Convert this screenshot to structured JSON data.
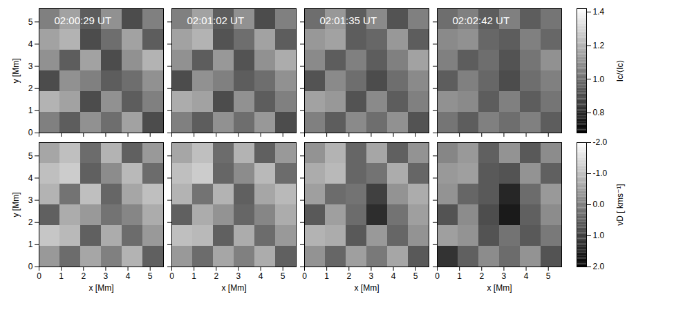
{
  "chart_data": [
    {
      "type": "heatmap",
      "title": "02:00:29 UT",
      "ylabel": "y [Mm]",
      "xlim": [
        0,
        5.6
      ],
      "ylim": [
        0,
        5.6
      ],
      "xticks": [
        0,
        1,
        2,
        3,
        4,
        5
      ],
      "yticks": [
        0,
        1,
        2,
        3,
        4,
        5
      ],
      "tick_labels": "y",
      "cells": [
        [
          1.05,
          1.15,
          0.95,
          1.1,
          0.9,
          1.05
        ],
        [
          1.15,
          1.2,
          0.9,
          1.0,
          1.15,
          0.95
        ],
        [
          1.1,
          0.95,
          1.15,
          0.9,
          1.1,
          1.2
        ],
        [
          0.9,
          1.1,
          1.05,
          0.95,
          1.0,
          1.1
        ],
        [
          1.2,
          1.15,
          0.9,
          1.1,
          0.95,
          1.05
        ],
        [
          1.05,
          0.95,
          1.1,
          1.0,
          1.15,
          0.9
        ]
      ]
    },
    {
      "type": "heatmap",
      "title": "02:01:02 UT",
      "xlim": [
        0,
        5.6
      ],
      "ylim": [
        0,
        5.6
      ],
      "xticks": [
        0,
        1,
        2,
        3,
        4,
        5
      ],
      "yticks": [
        0,
        1,
        2,
        3,
        4,
        5
      ],
      "tick_labels": false,
      "cells": [
        [
          1.05,
          1.15,
          0.95,
          1.1,
          0.9,
          1.05
        ],
        [
          1.15,
          1.2,
          0.92,
          1.0,
          1.15,
          0.95
        ],
        [
          1.1,
          0.95,
          1.12,
          0.92,
          1.1,
          1.18
        ],
        [
          0.9,
          1.1,
          1.05,
          0.95,
          1.0,
          1.1
        ],
        [
          1.18,
          1.15,
          0.9,
          1.1,
          0.95,
          1.05
        ],
        [
          1.05,
          0.95,
          1.1,
          1.0,
          1.12,
          0.9
        ]
      ]
    },
    {
      "type": "heatmap",
      "title": "02:01:35 UT",
      "xlim": [
        0,
        5.6
      ],
      "ylim": [
        0,
        5.6
      ],
      "xticks": [
        0,
        1,
        2,
        3,
        4,
        5
      ],
      "yticks": [
        0,
        1,
        2,
        3,
        4,
        5
      ],
      "tick_labels": false,
      "cells": [
        [
          1.0,
          1.12,
          0.95,
          1.08,
          0.92,
          1.05
        ],
        [
          1.12,
          1.15,
          0.95,
          0.98,
          1.12,
          0.95
        ],
        [
          1.08,
          0.95,
          1.05,
          0.95,
          1.05,
          1.15
        ],
        [
          0.92,
          1.08,
          1.0,
          0.9,
          1.0,
          1.08
        ],
        [
          1.15,
          1.12,
          0.92,
          1.08,
          0.95,
          1.05
        ],
        [
          1.05,
          0.95,
          1.08,
          1.0,
          1.1,
          0.92
        ]
      ]
    },
    {
      "type": "heatmap",
      "title": "02:02:42 UT",
      "xlim": [
        0,
        5.6
      ],
      "ylim": [
        0,
        5.6
      ],
      "xticks": [
        0,
        1,
        2,
        3,
        4,
        5
      ],
      "yticks": [
        0,
        1,
        2,
        3,
        4,
        5
      ],
      "tick_labels": false,
      "cells": [
        [
          1.0,
          1.05,
          0.95,
          1.05,
          0.95,
          1.02
        ],
        [
          1.08,
          1.1,
          0.98,
          0.95,
          1.05,
          0.98
        ],
        [
          1.05,
          0.95,
          1.0,
          0.92,
          1.02,
          1.1
        ],
        [
          0.95,
          1.05,
          0.98,
          0.9,
          1.0,
          1.05
        ],
        [
          1.1,
          1.08,
          0.95,
          1.05,
          0.95,
          1.02
        ],
        [
          1.02,
          0.95,
          1.05,
          1.0,
          1.05,
          0.95
        ]
      ],
      "colorbar": {
        "label": "Ic/⟨Ic⟩",
        "range": [
          0.68,
          1.42
        ],
        "colors": [
          "#000000",
          "#ffffff"
        ],
        "ticks": [
          0.8,
          {
            "value": 1,
            "label": "1.0"
          },
          1.2,
          1.4
        ]
      }
    },
    {
      "type": "heatmap",
      "xlabel": "x [Mm]",
      "ylabel": "y [Mm]",
      "xlim": [
        0,
        5.6
      ],
      "ylim": [
        0,
        5.6
      ],
      "xticks": [
        0,
        1,
        2,
        3,
        4,
        5
      ],
      "yticks": [
        0,
        1,
        2,
        3,
        4,
        5
      ],
      "tick_labels": true,
      "cells": [
        [
          -0.6,
          -1.0,
          0.3,
          -0.8,
          0.5,
          -0.4
        ],
        [
          -1.0,
          -1.2,
          0.5,
          -0.2,
          -0.9,
          0.3
        ],
        [
          -0.8,
          0.2,
          -1.0,
          0.4,
          -0.6,
          -1.0
        ],
        [
          0.5,
          -0.7,
          -0.4,
          0.2,
          -0.1,
          -0.7
        ],
        [
          -1.1,
          -0.9,
          0.5,
          -0.7,
          0.3,
          -0.4
        ],
        [
          -0.4,
          0.3,
          -0.6,
          0.0,
          -0.8,
          0.5
        ]
      ]
    },
    {
      "type": "heatmap",
      "xlabel": "x [Mm]",
      "xlim": [
        0,
        5.6
      ],
      "ylim": [
        0,
        5.6
      ],
      "xticks": [
        0,
        1,
        2,
        3,
        4,
        5
      ],
      "yticks": [
        0,
        1,
        2,
        3,
        4,
        5
      ],
      "tick_labels": "x",
      "cells": [
        [
          -0.6,
          -1.0,
          0.3,
          -0.8,
          0.5,
          -0.4
        ],
        [
          -1.0,
          -1.2,
          0.4,
          -0.2,
          -0.9,
          0.3
        ],
        [
          -0.8,
          0.2,
          -0.8,
          0.5,
          -0.6,
          -0.9
        ],
        [
          0.5,
          -0.7,
          -0.3,
          0.4,
          -0.1,
          -0.7
        ],
        [
          -1.0,
          -0.9,
          0.5,
          -0.7,
          0.3,
          -0.4
        ],
        [
          -0.4,
          0.3,
          -0.6,
          0.0,
          -0.7,
          0.5
        ]
      ]
    },
    {
      "type": "heatmap",
      "xlabel": "x [Mm]",
      "xlim": [
        0,
        5.6
      ],
      "ylim": [
        0,
        5.6
      ],
      "xticks": [
        0,
        1,
        2,
        3,
        4,
        5
      ],
      "yticks": [
        0,
        1,
        2,
        3,
        4,
        5
      ],
      "tick_labels": "x",
      "cells": [
        [
          -0.3,
          -0.8,
          0.4,
          -0.6,
          0.5,
          -0.3
        ],
        [
          -0.7,
          -0.9,
          0.4,
          0.2,
          -0.7,
          0.4
        ],
        [
          -0.5,
          0.3,
          0.2,
          1.0,
          -0.3,
          -0.7
        ],
        [
          0.6,
          -0.5,
          0.3,
          1.3,
          0.2,
          -0.5
        ],
        [
          -0.8,
          -0.7,
          0.6,
          -0.4,
          0.4,
          -0.3
        ],
        [
          -0.3,
          0.4,
          -0.5,
          0.1,
          -0.6,
          0.6
        ]
      ]
    },
    {
      "type": "heatmap",
      "xlabel": "x [Mm]",
      "xlim": [
        0,
        5.6
      ],
      "ylim": [
        0,
        5.6
      ],
      "xticks": [
        0,
        1,
        2,
        3,
        4,
        5
      ],
      "yticks": [
        0,
        1,
        2,
        3,
        4,
        5
      ],
      "tick_labels": "x",
      "cells": [
        [
          -0.1,
          -0.4,
          0.5,
          -0.3,
          0.6,
          -0.2
        ],
        [
          -0.4,
          -0.5,
          0.6,
          0.7,
          -0.3,
          0.5
        ],
        [
          -0.3,
          0.4,
          0.6,
          1.4,
          0.3,
          -0.4
        ],
        [
          0.7,
          -0.2,
          0.8,
          1.6,
          0.5,
          -0.2
        ],
        [
          -0.5,
          -0.3,
          0.7,
          0.2,
          0.6,
          0.1
        ],
        [
          1.2,
          0.5,
          -0.2,
          0.3,
          -0.3,
          0.7
        ]
      ],
      "colorbar": {
        "label": "vD [ kms⁻¹]",
        "range": [
          2.0,
          -2.0
        ],
        "colors": [
          "#000000",
          "#ffffff"
        ],
        "ticks": [
          {
            "value": -2,
            "label": "-2.0"
          },
          {
            "value": -1,
            "label": "-1.0"
          },
          {
            "value": 0,
            "label": "0.0"
          },
          {
            "value": 1,
            "label": "1.0"
          },
          {
            "value": 2,
            "label": "2.0"
          }
        ]
      }
    }
  ]
}
